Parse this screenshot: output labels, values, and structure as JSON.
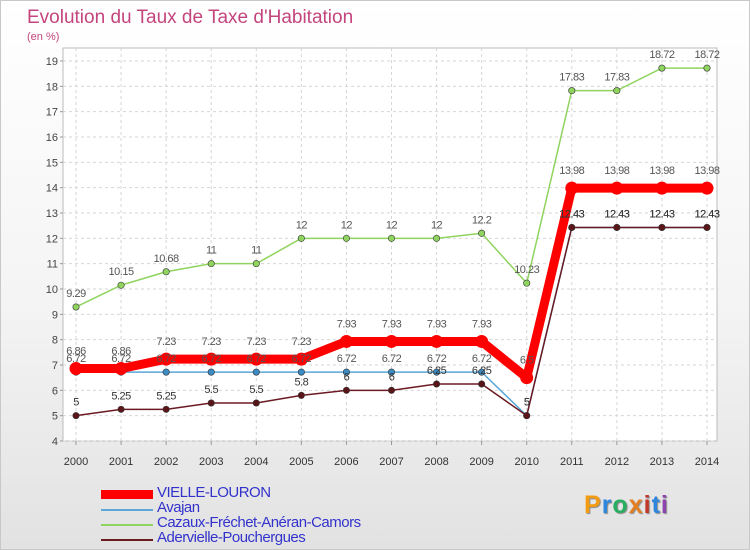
{
  "title": "Evolution du Taux de Taxe d'Habitation",
  "unit": "(en %)",
  "logo": "Proxiti",
  "chart_data": {
    "type": "line",
    "title": "Evolution du Taux de Taxe d'Habitation",
    "ylabel": "(en %)",
    "xlabel": "",
    "ylim": [
      4,
      19
    ],
    "yticks": [
      4,
      5,
      6,
      7,
      8,
      9,
      10,
      11,
      12,
      13,
      14,
      15,
      16,
      17,
      18,
      19
    ],
    "grid": true,
    "legend_position": "bottom-left",
    "categories": [
      "2000",
      "2001",
      "2002",
      "2003",
      "2004",
      "2005",
      "2006",
      "2007",
      "2008",
      "2009",
      "2010",
      "2011",
      "2012",
      "2013",
      "2014"
    ],
    "series": [
      {
        "name": "VIELLE-LOURON",
        "color": "#ff0000",
        "values": [
          6.86,
          6.86,
          7.23,
          7.23,
          7.23,
          7.23,
          7.93,
          7.93,
          7.93,
          7.93,
          6.5,
          13.98,
          13.98,
          13.98,
          13.98
        ]
      },
      {
        "name": "Avajan",
        "color": "#5aa7d8",
        "values": [
          6.72,
          6.72,
          6.72,
          6.72,
          6.72,
          6.72,
          6.72,
          6.72,
          6.72,
          6.72,
          5,
          12.43,
          12.43,
          12.43,
          12.43
        ]
      },
      {
        "name": "Cazaux-Fréchet-Anéran-Camors",
        "color": "#8fd45e",
        "values": [
          9.29,
          10.15,
          10.68,
          11,
          11,
          12,
          12,
          12,
          12,
          12.2,
          10.23,
          17.83,
          17.83,
          18.72,
          18.72
        ]
      },
      {
        "name": "Adervielle-Pouchergues",
        "color": "#6b1a22",
        "values": [
          5,
          5.25,
          5.25,
          5.5,
          5.5,
          5.8,
          6,
          6,
          6.25,
          6.25,
          5,
          12.43,
          12.43,
          12.43,
          12.43
        ]
      }
    ],
    "data_labels": {
      "VIELLE-LOURON": [
        "6.86",
        "6.86",
        "7.23",
        "7.23",
        "7.23",
        "7.23",
        "7.93",
        "7.93",
        "7.93",
        "7.93",
        "6.5",
        "13.98",
        "13.98",
        "13.98",
        "13.98"
      ],
      "Avajan": [
        "6.72",
        "6.72",
        "6.72",
        "6.72",
        "6.72",
        "6.72",
        "6.72",
        "6.72",
        "6.72",
        "6.72",
        "5",
        "12.43",
        "12.43",
        "12.43",
        "12.43"
      ],
      "Cazaux-Fréchet-Anéran-Camors": [
        "9.29",
        "10.15",
        "10.68",
        "11",
        "11",
        "12",
        "12",
        "12",
        "12",
        "12.2",
        "10.23",
        "17.83",
        "17.83",
        "18.72",
        "18.72"
      ],
      "Adervielle-Pouchergues": [
        "5",
        "5.25",
        "5.25",
        "5.5",
        "5.5",
        "5.8",
        "6",
        "6",
        "6.25",
        "6.25",
        "5",
        "12.43",
        "12.43",
        "12.43",
        "12.43"
      ]
    }
  }
}
